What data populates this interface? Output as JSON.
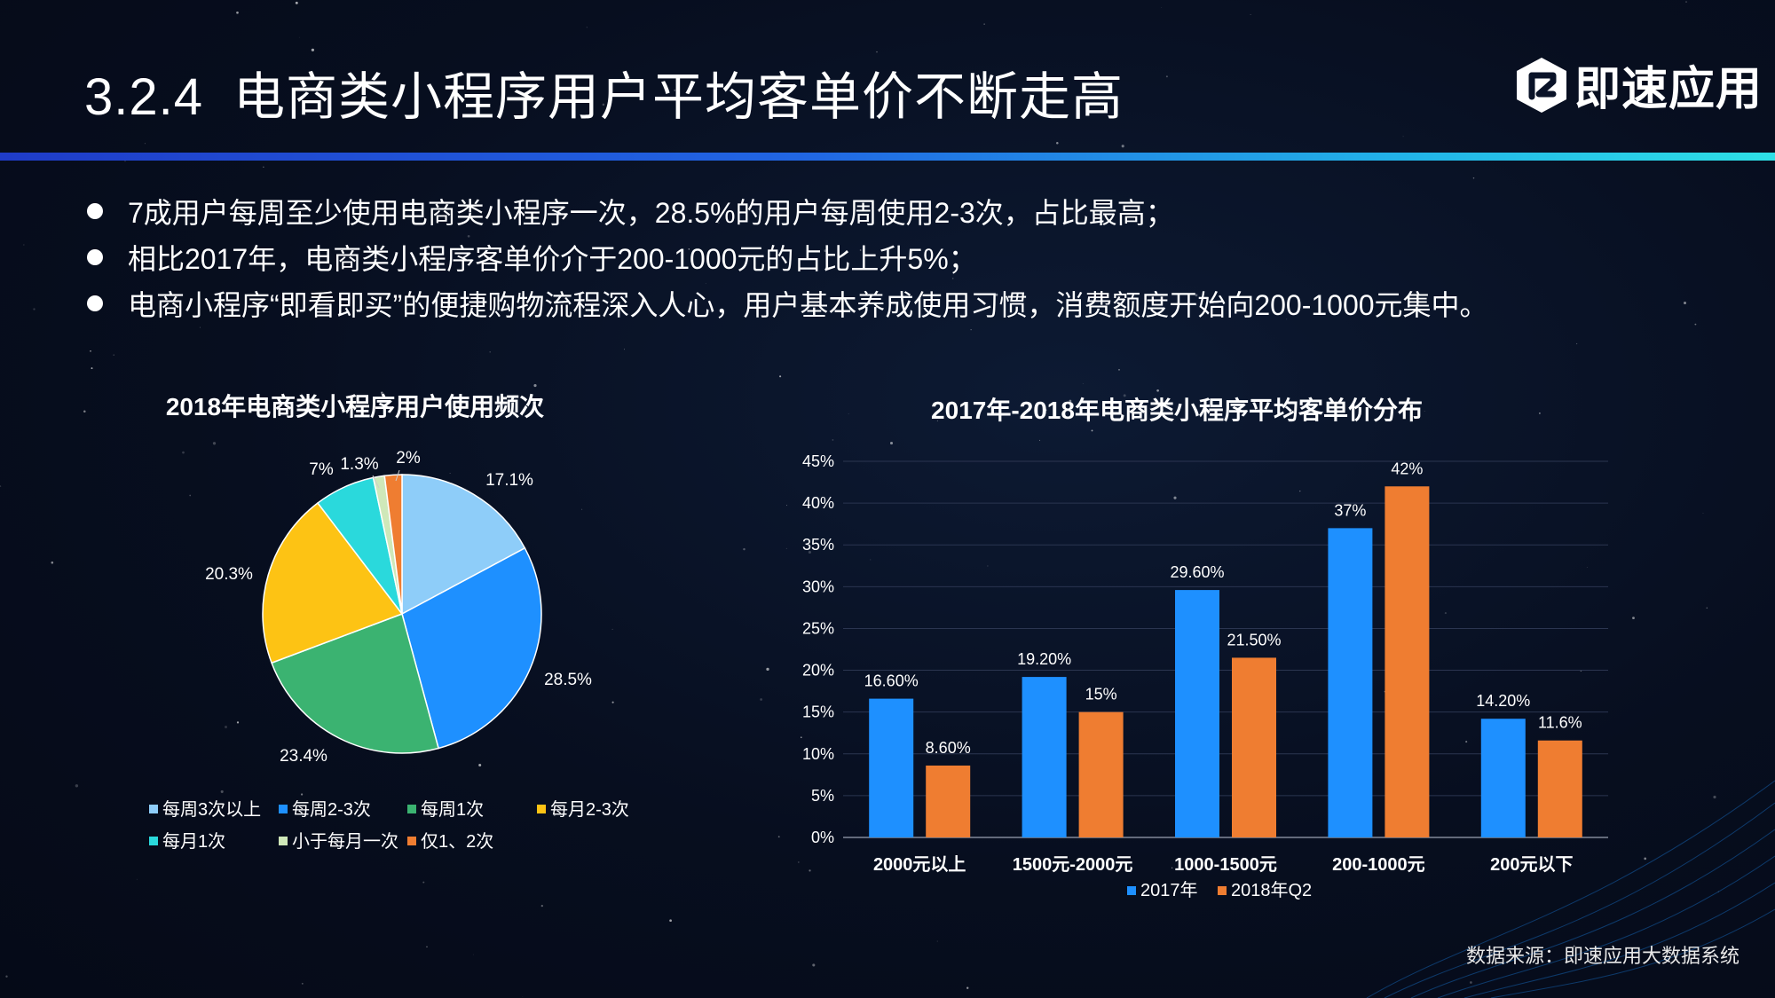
{
  "header": {
    "section_number": "3.2.4",
    "title": "电商类小程序用户平均客单价不断走高",
    "logo_text": "即速应用"
  },
  "bullets": [
    "7成用户每周至少使用电商类小程序一次，28.5%的用户每周使用2-3次，占比最高；",
    "相比2017年，电商类小程序客单价介于200-1000元的占比上升5%；",
    "电商小程序“即看即买”的便捷购物流程深入人心，用户基本养成使用习惯，消费额度开始向200-1000元集中。"
  ],
  "source": "数据来源：即速应用大数据系统",
  "chart_data": [
    {
      "type": "pie",
      "title": "2018年电商类小程序用户使用频次",
      "slices": [
        {
          "label": "每周3次以上",
          "value": 17.1,
          "display": "17.1%",
          "color": "#8ecdf9"
        },
        {
          "label": "每周2-3次",
          "value": 28.5,
          "display": "28.5%",
          "color": "#1e90ff"
        },
        {
          "label": "每周1次",
          "value": 23.4,
          "display": "23.4%",
          "color": "#3bb371"
        },
        {
          "label": "每月2-3次",
          "value": 20.3,
          "display": "20.3%",
          "color": "#fdc314"
        },
        {
          "label": "每月1次",
          "value": 7,
          "display": "7%",
          "color": "#2ad9dc"
        },
        {
          "label": "小于每月一次",
          "value": 1.3,
          "display": "1.3%",
          "color": "#cfe8b9"
        },
        {
          "label": "仅1、2次",
          "value": 2,
          "display": "2%",
          "color": "#ef7d31"
        }
      ],
      "legend_position": "bottom"
    },
    {
      "type": "bar",
      "title": "2017年-2018年电商类小程序平均客单价分布",
      "categories": [
        "2000元以上",
        "1500元-2000元",
        "1000-1500元",
        "200-1000元",
        "200元以下"
      ],
      "series": [
        {
          "name": "2017年",
          "color": "#1e90ff",
          "values": [
            16.6,
            19.2,
            29.6,
            37,
            14.2
          ],
          "labels": [
            "16.60%",
            "19.20%",
            "29.60%",
            "37%",
            "14.20%"
          ]
        },
        {
          "name": "2018年Q2",
          "color": "#ef7d31",
          "values": [
            8.6,
            15,
            21.5,
            42,
            11.6
          ],
          "labels": [
            "8.60%",
            "15%",
            "21.50%",
            "42%",
            "11.6%"
          ]
        }
      ],
      "yticks": [
        "0%",
        "5%",
        "10%",
        "15%",
        "20%",
        "25%",
        "30%",
        "35%",
        "40%",
        "45%"
      ],
      "ylim": [
        0,
        45
      ],
      "grid": true,
      "legend_position": "bottom"
    }
  ]
}
